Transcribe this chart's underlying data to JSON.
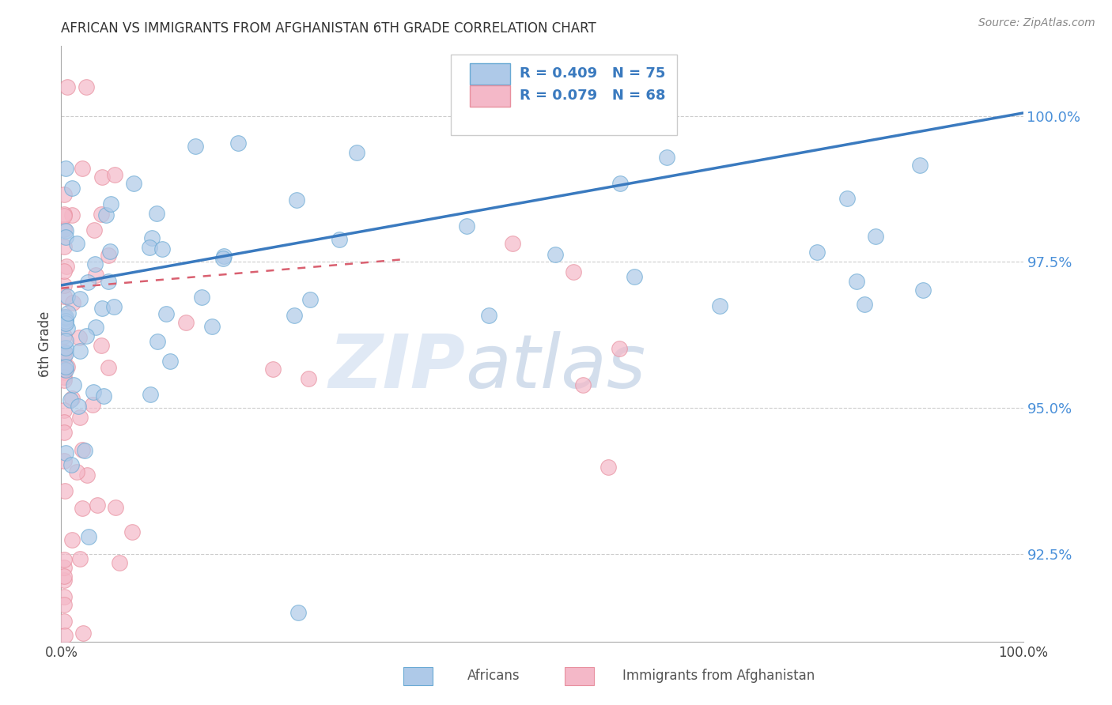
{
  "title": "AFRICAN VS IMMIGRANTS FROM AFGHANISTAN 6TH GRADE CORRELATION CHART",
  "source": "Source: ZipAtlas.com",
  "ylabel": "6th Grade",
  "y_ticks": [
    92.5,
    95.0,
    97.5,
    100.0
  ],
  "y_tick_labels": [
    "92.5%",
    "95.0%",
    "97.5%",
    "100.0%"
  ],
  "xlim": [
    0.0,
    1.0
  ],
  "ylim": [
    91.0,
    101.2
  ],
  "legend_blue_label": "R = 0.409   N = 75",
  "legend_pink_label": "R = 0.079   N = 68",
  "blue_fill_color": "#aec9e8",
  "pink_fill_color": "#f4b8c8",
  "blue_edge_color": "#6aaad4",
  "pink_edge_color": "#e8909f",
  "blue_line_color": "#3a7abf",
  "pink_line_color": "#d96070",
  "tick_label_color": "#4a90d9",
  "title_color": "#333333",
  "source_color": "#888888",
  "watermark_color": "#dce8f5",
  "grid_color": "#cccccc",
  "background_color": "#ffffff",
  "legend_text_color": "#3a7abf",
  "bottom_legend_text_color": "#555555"
}
